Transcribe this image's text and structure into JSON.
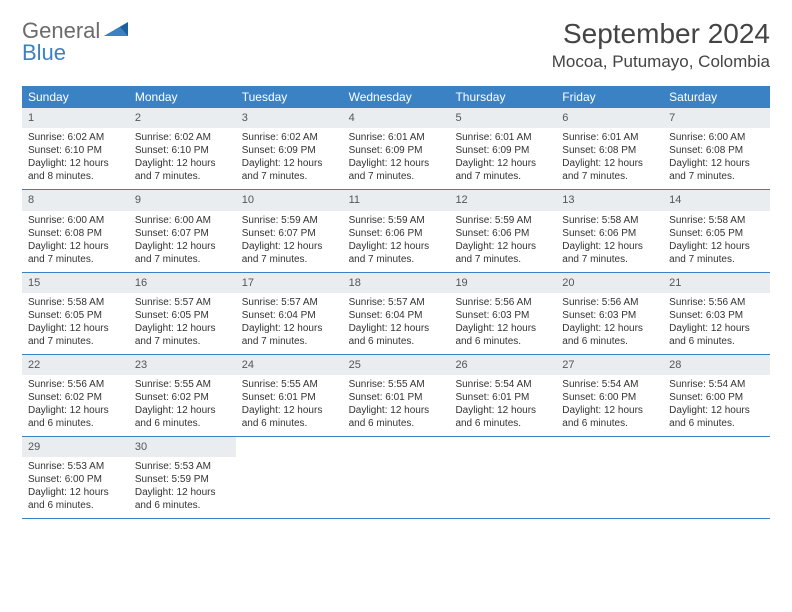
{
  "logo": {
    "part1": "General",
    "part2": "Blue"
  },
  "title": "September 2024",
  "location": "Mocoa, Putumayo, Colombia",
  "colors": {
    "header_bg": "#3b82c4",
    "daynum_bg": "#e9edf0",
    "row_border": "#3b82c4",
    "text": "#333333",
    "logo_gray": "#6b6b6b",
    "logo_blue": "#3b82c4"
  },
  "dow": [
    "Sunday",
    "Monday",
    "Tuesday",
    "Wednesday",
    "Thursday",
    "Friday",
    "Saturday"
  ],
  "weeks": [
    [
      {
        "n": "1",
        "sunrise": "Sunrise: 6:02 AM",
        "sunset": "Sunset: 6:10 PM",
        "day1": "Daylight: 12 hours",
        "day2": "and 8 minutes."
      },
      {
        "n": "2",
        "sunrise": "Sunrise: 6:02 AM",
        "sunset": "Sunset: 6:10 PM",
        "day1": "Daylight: 12 hours",
        "day2": "and 7 minutes."
      },
      {
        "n": "3",
        "sunrise": "Sunrise: 6:02 AM",
        "sunset": "Sunset: 6:09 PM",
        "day1": "Daylight: 12 hours",
        "day2": "and 7 minutes."
      },
      {
        "n": "4",
        "sunrise": "Sunrise: 6:01 AM",
        "sunset": "Sunset: 6:09 PM",
        "day1": "Daylight: 12 hours",
        "day2": "and 7 minutes."
      },
      {
        "n": "5",
        "sunrise": "Sunrise: 6:01 AM",
        "sunset": "Sunset: 6:09 PM",
        "day1": "Daylight: 12 hours",
        "day2": "and 7 minutes."
      },
      {
        "n": "6",
        "sunrise": "Sunrise: 6:01 AM",
        "sunset": "Sunset: 6:08 PM",
        "day1": "Daylight: 12 hours",
        "day2": "and 7 minutes."
      },
      {
        "n": "7",
        "sunrise": "Sunrise: 6:00 AM",
        "sunset": "Sunset: 6:08 PM",
        "day1": "Daylight: 12 hours",
        "day2": "and 7 minutes."
      }
    ],
    [
      {
        "n": "8",
        "sunrise": "Sunrise: 6:00 AM",
        "sunset": "Sunset: 6:08 PM",
        "day1": "Daylight: 12 hours",
        "day2": "and 7 minutes."
      },
      {
        "n": "9",
        "sunrise": "Sunrise: 6:00 AM",
        "sunset": "Sunset: 6:07 PM",
        "day1": "Daylight: 12 hours",
        "day2": "and 7 minutes."
      },
      {
        "n": "10",
        "sunrise": "Sunrise: 5:59 AM",
        "sunset": "Sunset: 6:07 PM",
        "day1": "Daylight: 12 hours",
        "day2": "and 7 minutes."
      },
      {
        "n": "11",
        "sunrise": "Sunrise: 5:59 AM",
        "sunset": "Sunset: 6:06 PM",
        "day1": "Daylight: 12 hours",
        "day2": "and 7 minutes."
      },
      {
        "n": "12",
        "sunrise": "Sunrise: 5:59 AM",
        "sunset": "Sunset: 6:06 PM",
        "day1": "Daylight: 12 hours",
        "day2": "and 7 minutes."
      },
      {
        "n": "13",
        "sunrise": "Sunrise: 5:58 AM",
        "sunset": "Sunset: 6:06 PM",
        "day1": "Daylight: 12 hours",
        "day2": "and 7 minutes."
      },
      {
        "n": "14",
        "sunrise": "Sunrise: 5:58 AM",
        "sunset": "Sunset: 6:05 PM",
        "day1": "Daylight: 12 hours",
        "day2": "and 7 minutes."
      }
    ],
    [
      {
        "n": "15",
        "sunrise": "Sunrise: 5:58 AM",
        "sunset": "Sunset: 6:05 PM",
        "day1": "Daylight: 12 hours",
        "day2": "and 7 minutes."
      },
      {
        "n": "16",
        "sunrise": "Sunrise: 5:57 AM",
        "sunset": "Sunset: 6:05 PM",
        "day1": "Daylight: 12 hours",
        "day2": "and 7 minutes."
      },
      {
        "n": "17",
        "sunrise": "Sunrise: 5:57 AM",
        "sunset": "Sunset: 6:04 PM",
        "day1": "Daylight: 12 hours",
        "day2": "and 7 minutes."
      },
      {
        "n": "18",
        "sunrise": "Sunrise: 5:57 AM",
        "sunset": "Sunset: 6:04 PM",
        "day1": "Daylight: 12 hours",
        "day2": "and 6 minutes."
      },
      {
        "n": "19",
        "sunrise": "Sunrise: 5:56 AM",
        "sunset": "Sunset: 6:03 PM",
        "day1": "Daylight: 12 hours",
        "day2": "and 6 minutes."
      },
      {
        "n": "20",
        "sunrise": "Sunrise: 5:56 AM",
        "sunset": "Sunset: 6:03 PM",
        "day1": "Daylight: 12 hours",
        "day2": "and 6 minutes."
      },
      {
        "n": "21",
        "sunrise": "Sunrise: 5:56 AM",
        "sunset": "Sunset: 6:03 PM",
        "day1": "Daylight: 12 hours",
        "day2": "and 6 minutes."
      }
    ],
    [
      {
        "n": "22",
        "sunrise": "Sunrise: 5:56 AM",
        "sunset": "Sunset: 6:02 PM",
        "day1": "Daylight: 12 hours",
        "day2": "and 6 minutes."
      },
      {
        "n": "23",
        "sunrise": "Sunrise: 5:55 AM",
        "sunset": "Sunset: 6:02 PM",
        "day1": "Daylight: 12 hours",
        "day2": "and 6 minutes."
      },
      {
        "n": "24",
        "sunrise": "Sunrise: 5:55 AM",
        "sunset": "Sunset: 6:01 PM",
        "day1": "Daylight: 12 hours",
        "day2": "and 6 minutes."
      },
      {
        "n": "25",
        "sunrise": "Sunrise: 5:55 AM",
        "sunset": "Sunset: 6:01 PM",
        "day1": "Daylight: 12 hours",
        "day2": "and 6 minutes."
      },
      {
        "n": "26",
        "sunrise": "Sunrise: 5:54 AM",
        "sunset": "Sunset: 6:01 PM",
        "day1": "Daylight: 12 hours",
        "day2": "and 6 minutes."
      },
      {
        "n": "27",
        "sunrise": "Sunrise: 5:54 AM",
        "sunset": "Sunset: 6:00 PM",
        "day1": "Daylight: 12 hours",
        "day2": "and 6 minutes."
      },
      {
        "n": "28",
        "sunrise": "Sunrise: 5:54 AM",
        "sunset": "Sunset: 6:00 PM",
        "day1": "Daylight: 12 hours",
        "day2": "and 6 minutes."
      }
    ],
    [
      {
        "n": "29",
        "sunrise": "Sunrise: 5:53 AM",
        "sunset": "Sunset: 6:00 PM",
        "day1": "Daylight: 12 hours",
        "day2": "and 6 minutes."
      },
      {
        "n": "30",
        "sunrise": "Sunrise: 5:53 AM",
        "sunset": "Sunset: 5:59 PM",
        "day1": "Daylight: 12 hours",
        "day2": "and 6 minutes."
      },
      null,
      null,
      null,
      null,
      null
    ]
  ]
}
